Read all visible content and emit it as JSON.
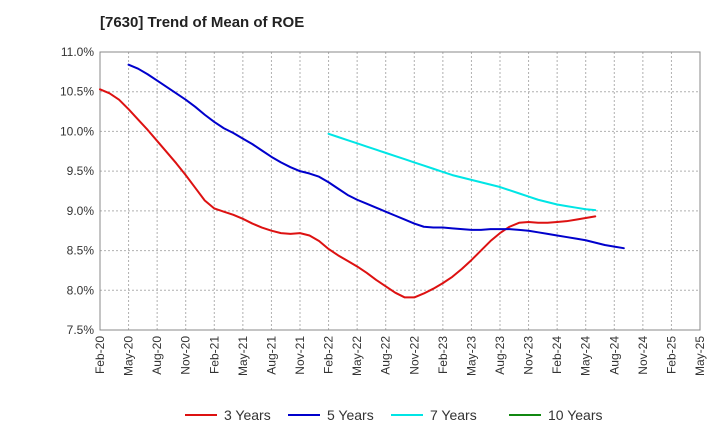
{
  "chart_data": {
    "type": "line",
    "title": "[7630]  Trend of Mean of ROE",
    "xlabel": "",
    "ylabel": "",
    "ylim": [
      7.5,
      11.0
    ],
    "ytick_values": [
      7.5,
      8.0,
      8.5,
      9.0,
      9.5,
      10.0,
      10.5,
      11.0
    ],
    "ytick_labels": [
      "7.5%",
      "8.0%",
      "8.5%",
      "9.0%",
      "9.5%",
      "10.0%",
      "10.5%",
      "11.0%"
    ],
    "xtick_labels": [
      "Feb-20",
      "May-20",
      "Aug-20",
      "Nov-20",
      "Feb-21",
      "May-21",
      "Aug-21",
      "Nov-21",
      "Feb-22",
      "May-22",
      "Aug-22",
      "Nov-22",
      "Feb-23",
      "May-23",
      "Aug-23",
      "Nov-23",
      "Feb-24",
      "May-24",
      "Aug-24",
      "Nov-24",
      "Feb-25",
      "May-25"
    ],
    "grid": true,
    "legend_position": "bottom",
    "series": [
      {
        "name": "3 Years",
        "color": "#dd1111",
        "start_index": 0,
        "values": [
          10.53,
          10.48,
          10.4,
          10.28,
          10.15,
          10.02,
          9.88,
          9.74,
          9.6,
          9.45,
          9.29,
          9.13,
          9.03,
          8.99,
          8.95,
          8.9,
          8.84,
          8.79,
          8.75,
          8.72,
          8.71,
          8.72,
          8.69,
          8.62,
          8.52,
          8.44,
          8.37,
          8.3,
          8.22,
          8.13,
          8.05,
          7.97,
          7.91,
          7.91,
          7.96,
          8.02,
          8.09,
          8.17,
          8.27,
          8.38,
          8.5,
          8.62,
          8.72,
          8.8,
          8.85,
          8.86,
          8.85,
          8.85,
          8.86,
          8.87,
          8.89,
          8.91,
          8.93
        ]
      },
      {
        "name": "5 Years",
        "color": "#0000cc",
        "start_index": 3,
        "values": [
          10.84,
          10.79,
          10.72,
          10.64,
          10.56,
          10.48,
          10.4,
          10.31,
          10.21,
          10.12,
          10.04,
          9.98,
          9.91,
          9.84,
          9.76,
          9.68,
          9.61,
          9.55,
          9.5,
          9.47,
          9.43,
          9.36,
          9.28,
          9.2,
          9.14,
          9.09,
          9.04,
          8.99,
          8.94,
          8.89,
          8.84,
          8.8,
          8.79,
          8.79,
          8.78,
          8.77,
          8.76,
          8.76,
          8.77,
          8.77,
          8.77,
          8.76,
          8.75,
          8.73,
          8.71,
          8.69,
          8.67,
          8.65,
          8.63,
          8.6,
          8.57,
          8.55,
          8.53
        ]
      },
      {
        "name": "7 Years",
        "color": "#00e5e5",
        "start_index": 24,
        "values": [
          9.97,
          9.93,
          9.89,
          9.85,
          9.81,
          9.77,
          9.73,
          9.69,
          9.65,
          9.61,
          9.57,
          9.53,
          9.49,
          9.45,
          9.42,
          9.39,
          9.36,
          9.33,
          9.3,
          9.26,
          9.22,
          9.18,
          9.14,
          9.11,
          9.08,
          9.06,
          9.04,
          9.02,
          9.01
        ]
      },
      {
        "name": "10 Years",
        "color": "#118811",
        "start_index": 0,
        "values": []
      }
    ]
  }
}
